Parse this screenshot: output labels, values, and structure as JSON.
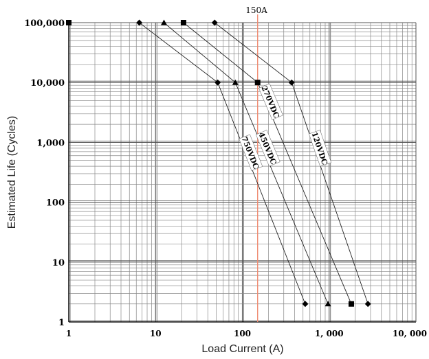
{
  "chart_data": {
    "type": "line",
    "xscale": "log",
    "yscale": "log",
    "xlim": [
      1,
      10000
    ],
    "ylim": [
      1,
      100000
    ],
    "xlabel": "Load Current (A)",
    "ylabel": "Estimated Life (Cycles)",
    "x_ticks": [
      "1",
      "10",
      "100",
      "1, 000",
      "10, 000"
    ],
    "y_ticks": [
      "1",
      "10",
      "100",
      "1,000",
      "10,000",
      "100,000"
    ],
    "grid": true,
    "reference_line": {
      "x": 150,
      "label": "150A",
      "color": "#f08a70"
    },
    "series": [
      {
        "name": "750VDC",
        "marker": "diamond",
        "x": [
          6.5,
          52,
          530
        ],
        "y": [
          100000,
          10000,
          2
        ]
      },
      {
        "name": "450VDC",
        "marker": "triangle",
        "x": [
          12.5,
          83,
          970
        ],
        "y": [
          100000,
          10000,
          2
        ]
      },
      {
        "name": "270VDC",
        "marker": "square",
        "x": [
          21,
          150,
          1800
        ],
        "y": [
          100000,
          10000,
          2
        ]
      },
      {
        "name": "120VDC",
        "marker": "diamond",
        "x": [
          48,
          370,
          2800
        ],
        "y": [
          100000,
          10000,
          2
        ]
      }
    ],
    "y_axis_marker": {
      "x": 1,
      "y": 100000,
      "marker": "square"
    }
  }
}
